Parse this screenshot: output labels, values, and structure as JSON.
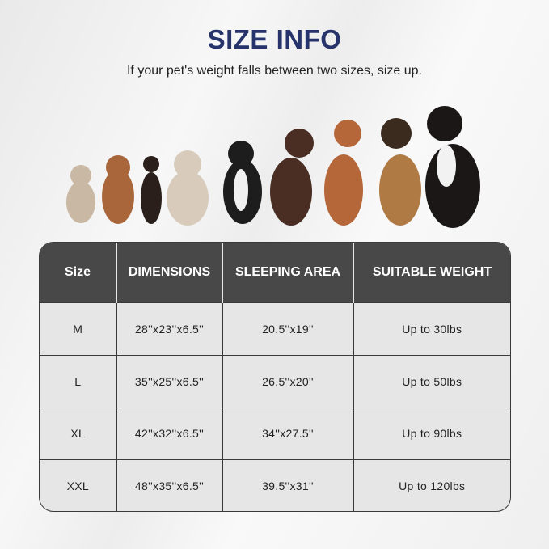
{
  "title": "SIZE INFO",
  "subtitle": "If your pet's weight falls between two sizes, size up.",
  "table": {
    "headers": [
      "Size",
      "DIMENSIONS",
      "SLEEPING AREA",
      "SUITABLE WEIGHT"
    ],
    "rows": [
      [
        "M",
        "28''x23''x6.5''",
        "20.5''x19''",
        "Up to 30lbs"
      ],
      [
        "L",
        "35''x25''x6.5''",
        "26.5''x20''",
        "Up to 50lbs"
      ],
      [
        "XL",
        "42''x32''x6.5''",
        "34''x27.5''",
        "Up to 90lbs"
      ],
      [
        "XXL",
        "48''x35''x6.5''",
        "39.5''x31''",
        "Up to 120lbs"
      ]
    ]
  },
  "colors": {
    "title": "#27336b",
    "header_bg": "#484848",
    "cell_bg": "#e6e6e6"
  }
}
